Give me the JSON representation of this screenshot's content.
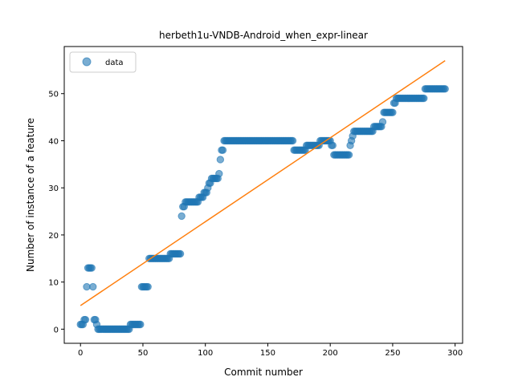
{
  "chart_data": {
    "type": "scatter",
    "title": "herbeth1u-VNDB-Android_when_expr-linear",
    "xlabel": "Commit number",
    "ylabel": "Number of instance of a feature",
    "xlim": [
      -13,
      306
    ],
    "ylim": [
      -3,
      60
    ],
    "xticks": [
      0,
      50,
      100,
      150,
      200,
      250,
      300
    ],
    "yticks": [
      0,
      10,
      20,
      30,
      40,
      50
    ],
    "grid": false,
    "legend": {
      "position": "top-left",
      "entries": [
        "data"
      ]
    },
    "colors": {
      "data": "#1f77b4",
      "fit": "#ff7f0e"
    },
    "series": [
      {
        "name": "data",
        "kind": "scatter",
        "points": [
          [
            0,
            1
          ],
          [
            1,
            1
          ],
          [
            2,
            1
          ],
          [
            3,
            2
          ],
          [
            4,
            2
          ],
          [
            5,
            9
          ],
          [
            6,
            13
          ],
          [
            7,
            13
          ],
          [
            8,
            13
          ],
          [
            9,
            13
          ],
          [
            10,
            9
          ],
          [
            11,
            2
          ],
          [
            12,
            2
          ],
          [
            13,
            1
          ],
          [
            14,
            0
          ],
          [
            15,
            0
          ],
          [
            16,
            0
          ],
          [
            17,
            0
          ],
          [
            18,
            0
          ],
          [
            19,
            0
          ],
          [
            20,
            0
          ],
          [
            21,
            0
          ],
          [
            22,
            0
          ],
          [
            23,
            0
          ],
          [
            24,
            0
          ],
          [
            25,
            0
          ],
          [
            26,
            0
          ],
          [
            27,
            0
          ],
          [
            28,
            0
          ],
          [
            29,
            0
          ],
          [
            30,
            0
          ],
          [
            31,
            0
          ],
          [
            32,
            0
          ],
          [
            33,
            0
          ],
          [
            34,
            0
          ],
          [
            35,
            0
          ],
          [
            36,
            0
          ],
          [
            37,
            0
          ],
          [
            38,
            0
          ],
          [
            39,
            0
          ],
          [
            40,
            1
          ],
          [
            41,
            1
          ],
          [
            42,
            1
          ],
          [
            43,
            1
          ],
          [
            44,
            1
          ],
          [
            45,
            1
          ],
          [
            46,
            1
          ],
          [
            47,
            1
          ],
          [
            48,
            1
          ],
          [
            49,
            9
          ],
          [
            50,
            9
          ],
          [
            51,
            9
          ],
          [
            52,
            9
          ],
          [
            53,
            9
          ],
          [
            54,
            9
          ],
          [
            55,
            15
          ],
          [
            56,
            15
          ],
          [
            57,
            15
          ],
          [
            58,
            15
          ],
          [
            59,
            15
          ],
          [
            60,
            15
          ],
          [
            61,
            15
          ],
          [
            62,
            15
          ],
          [
            63,
            15
          ],
          [
            64,
            15
          ],
          [
            65,
            15
          ],
          [
            66,
            15
          ],
          [
            67,
            15
          ],
          [
            68,
            15
          ],
          [
            69,
            15
          ],
          [
            70,
            15
          ],
          [
            71,
            15
          ],
          [
            72,
            16
          ],
          [
            73,
            16
          ],
          [
            74,
            16
          ],
          [
            75,
            16
          ],
          [
            76,
            16
          ],
          [
            77,
            16
          ],
          [
            78,
            16
          ],
          [
            79,
            16
          ],
          [
            80,
            16
          ],
          [
            81,
            24
          ],
          [
            82,
            26
          ],
          [
            83,
            26
          ],
          [
            84,
            27
          ],
          [
            85,
            27
          ],
          [
            86,
            27
          ],
          [
            87,
            27
          ],
          [
            88,
            27
          ],
          [
            89,
            27
          ],
          [
            90,
            27
          ],
          [
            91,
            27
          ],
          [
            92,
            27
          ],
          [
            93,
            27
          ],
          [
            94,
            27
          ],
          [
            95,
            28
          ],
          [
            96,
            28
          ],
          [
            97,
            28
          ],
          [
            98,
            28
          ],
          [
            99,
            29
          ],
          [
            100,
            29
          ],
          [
            101,
            29
          ],
          [
            102,
            30
          ],
          [
            103,
            31
          ],
          [
            104,
            31
          ],
          [
            105,
            32
          ],
          [
            106,
            32
          ],
          [
            107,
            32
          ],
          [
            108,
            32
          ],
          [
            109,
            32
          ],
          [
            110,
            32
          ],
          [
            111,
            33
          ],
          [
            112,
            36
          ],
          [
            113,
            38
          ],
          [
            114,
            38
          ],
          [
            115,
            40
          ],
          [
            116,
            40
          ],
          [
            117,
            40
          ],
          [
            118,
            40
          ],
          [
            119,
            40
          ],
          [
            120,
            40
          ],
          [
            121,
            40
          ],
          [
            122,
            40
          ],
          [
            123,
            40
          ],
          [
            124,
            40
          ],
          [
            125,
            40
          ],
          [
            126,
            40
          ],
          [
            127,
            40
          ],
          [
            128,
            40
          ],
          [
            129,
            40
          ],
          [
            130,
            40
          ],
          [
            131,
            40
          ],
          [
            132,
            40
          ],
          [
            133,
            40
          ],
          [
            134,
            40
          ],
          [
            135,
            40
          ],
          [
            136,
            40
          ],
          [
            137,
            40
          ],
          [
            138,
            40
          ],
          [
            139,
            40
          ],
          [
            140,
            40
          ],
          [
            141,
            40
          ],
          [
            142,
            40
          ],
          [
            143,
            40
          ],
          [
            144,
            40
          ],
          [
            145,
            40
          ],
          [
            146,
            40
          ],
          [
            147,
            40
          ],
          [
            148,
            40
          ],
          [
            149,
            40
          ],
          [
            150,
            40
          ],
          [
            151,
            40
          ],
          [
            152,
            40
          ],
          [
            153,
            40
          ],
          [
            154,
            40
          ],
          [
            155,
            40
          ],
          [
            156,
            40
          ],
          [
            157,
            40
          ],
          [
            158,
            40
          ],
          [
            159,
            40
          ],
          [
            160,
            40
          ],
          [
            161,
            40
          ],
          [
            162,
            40
          ],
          [
            163,
            40
          ],
          [
            164,
            40
          ],
          [
            165,
            40
          ],
          [
            166,
            40
          ],
          [
            167,
            40
          ],
          [
            168,
            40
          ],
          [
            169,
            40
          ],
          [
            170,
            40
          ],
          [
            171,
            38
          ],
          [
            172,
            38
          ],
          [
            173,
            38
          ],
          [
            174,
            38
          ],
          [
            175,
            38
          ],
          [
            176,
            38
          ],
          [
            177,
            38
          ],
          [
            178,
            38
          ],
          [
            179,
            38
          ],
          [
            180,
            38
          ],
          [
            181,
            39
          ],
          [
            182,
            39
          ],
          [
            183,
            39
          ],
          [
            184,
            39
          ],
          [
            185,
            39
          ],
          [
            186,
            39
          ],
          [
            187,
            39
          ],
          [
            188,
            39
          ],
          [
            189,
            39
          ],
          [
            190,
            39
          ],
          [
            191,
            39
          ],
          [
            192,
            40
          ],
          [
            193,
            40
          ],
          [
            194,
            40
          ],
          [
            195,
            40
          ],
          [
            196,
            40
          ],
          [
            197,
            40
          ],
          [
            198,
            40
          ],
          [
            199,
            40
          ],
          [
            200,
            40
          ],
          [
            201,
            39
          ],
          [
            202,
            39
          ],
          [
            203,
            37
          ],
          [
            204,
            37
          ],
          [
            205,
            37
          ],
          [
            206,
            37
          ],
          [
            207,
            37
          ],
          [
            208,
            37
          ],
          [
            209,
            37
          ],
          [
            210,
            37
          ],
          [
            211,
            37
          ],
          [
            212,
            37
          ],
          [
            213,
            37
          ],
          [
            214,
            37
          ],
          [
            215,
            37
          ],
          [
            216,
            39
          ],
          [
            217,
            40
          ],
          [
            218,
            41
          ],
          [
            219,
            42
          ],
          [
            220,
            42
          ],
          [
            221,
            42
          ],
          [
            222,
            42
          ],
          [
            223,
            42
          ],
          [
            224,
            42
          ],
          [
            225,
            42
          ],
          [
            226,
            42
          ],
          [
            227,
            42
          ],
          [
            228,
            42
          ],
          [
            229,
            42
          ],
          [
            230,
            42
          ],
          [
            231,
            42
          ],
          [
            232,
            42
          ],
          [
            233,
            42
          ],
          [
            234,
            42
          ],
          [
            235,
            43
          ],
          [
            236,
            43
          ],
          [
            237,
            43
          ],
          [
            238,
            43
          ],
          [
            239,
            43
          ],
          [
            240,
            43
          ],
          [
            241,
            43
          ],
          [
            242,
            44
          ],
          [
            243,
            46
          ],
          [
            244,
            46
          ],
          [
            245,
            46
          ],
          [
            246,
            46
          ],
          [
            247,
            46
          ],
          [
            248,
            46
          ],
          [
            249,
            46
          ],
          [
            250,
            46
          ],
          [
            251,
            48
          ],
          [
            252,
            48
          ],
          [
            253,
            49
          ],
          [
            254,
            49
          ],
          [
            255,
            49
          ],
          [
            256,
            49
          ],
          [
            257,
            49
          ],
          [
            258,
            49
          ],
          [
            259,
            49
          ],
          [
            260,
            49
          ],
          [
            261,
            49
          ],
          [
            262,
            49
          ],
          [
            263,
            49
          ],
          [
            264,
            49
          ],
          [
            265,
            49
          ],
          [
            266,
            49
          ],
          [
            267,
            49
          ],
          [
            268,
            49
          ],
          [
            269,
            49
          ],
          [
            270,
            49
          ],
          [
            271,
            49
          ],
          [
            272,
            49
          ],
          [
            273,
            49
          ],
          [
            274,
            49
          ],
          [
            275,
            49
          ],
          [
            276,
            51
          ],
          [
            277,
            51
          ],
          [
            278,
            51
          ],
          [
            279,
            51
          ],
          [
            280,
            51
          ],
          [
            281,
            51
          ],
          [
            282,
            51
          ],
          [
            283,
            51
          ],
          [
            284,
            51
          ],
          [
            285,
            51
          ],
          [
            286,
            51
          ],
          [
            287,
            51
          ],
          [
            288,
            51
          ],
          [
            289,
            51
          ],
          [
            290,
            51
          ],
          [
            291,
            51
          ],
          [
            292,
            51
          ]
        ]
      },
      {
        "kind": "line",
        "x": [
          0,
          292
        ],
        "y": [
          5,
          57
        ]
      }
    ]
  }
}
